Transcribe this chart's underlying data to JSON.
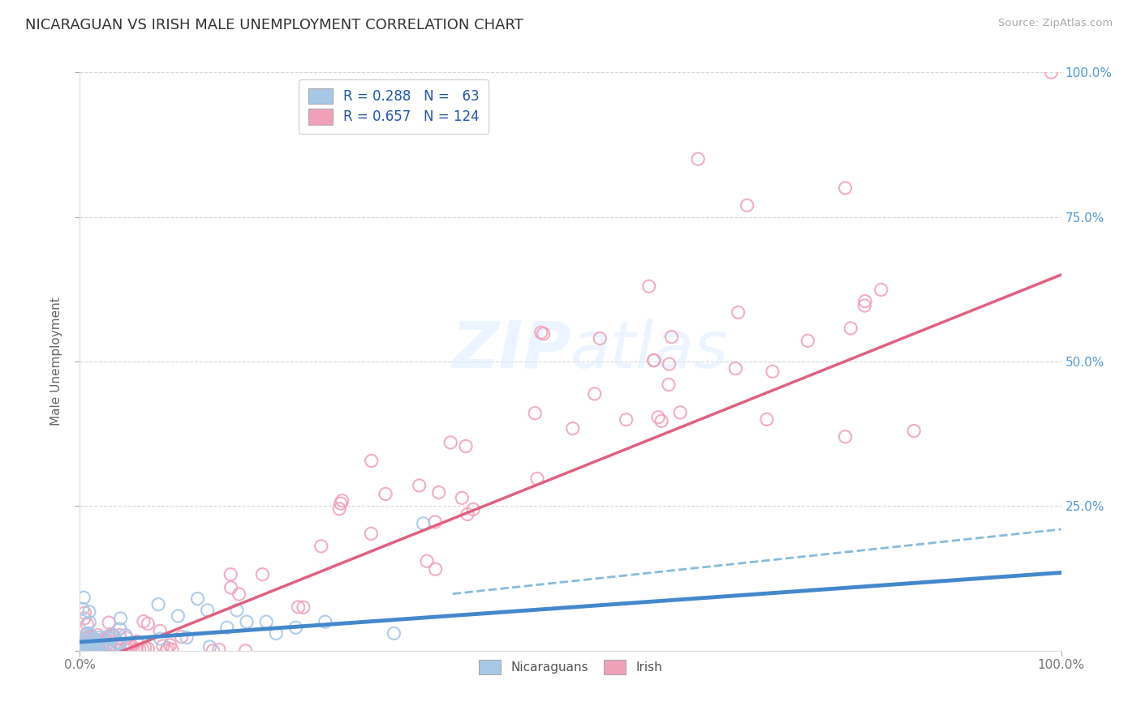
{
  "title": "NICARAGUAN VS IRISH MALE UNEMPLOYMENT CORRELATION CHART",
  "source_text": "Source: ZipAtlas.com",
  "ylabel": "Male Unemployment",
  "xlim": [
    0.0,
    1.0
  ],
  "ylim": [
    0.0,
    1.0
  ],
  "color_nicaraguan": "#a8c8e8",
  "color_irish": "#f0a0b8",
  "color_line_nicaraguan": "#4488cc",
  "color_line_irish": "#e06080",
  "color_line_nic_dashed": "#88bbdd",
  "color_title": "#333333",
  "color_source": "#aaaaaa",
  "color_legend_text_r": "#2255aa",
  "color_legend_text_n": "#111111",
  "color_axis_ticks": "#5599cc",
  "background_color": "#ffffff",
  "grid_color": "#cccccc",
  "watermark_color": "#ddeeff",
  "r_nicaraguan": 0.288,
  "n_nicaraguan": 63,
  "r_irish": 0.657,
  "n_irish": 124
}
